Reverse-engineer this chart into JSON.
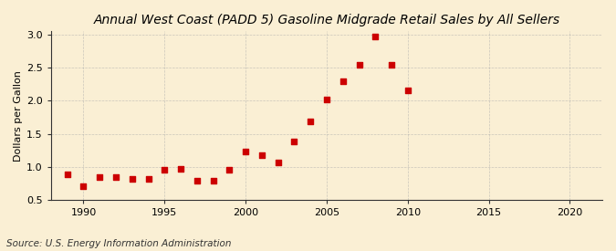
{
  "title": "Annual West Coast (PADD 5) Gasoline Midgrade Retail Sales by All Sellers",
  "ylabel": "Dollars per Gallon",
  "source": "Source: U.S. Energy Information Administration",
  "background_color": "#faefd4",
  "marker_color": "#cc0000",
  "years": [
    1989,
    1990,
    1991,
    1992,
    1993,
    1994,
    1995,
    1996,
    1997,
    1998,
    1999,
    2000,
    2001,
    2002,
    2003,
    2004,
    2005,
    2006,
    2007,
    2008,
    2009,
    2010
  ],
  "values": [
    0.88,
    0.7,
    0.85,
    0.84,
    0.82,
    0.82,
    0.95,
    0.97,
    0.79,
    0.79,
    0.96,
    1.23,
    1.18,
    1.06,
    1.39,
    1.69,
    2.02,
    2.3,
    2.55,
    2.97,
    2.55,
    2.16
  ],
  "xlim": [
    1988,
    2022
  ],
  "ylim": [
    0.5,
    3.05
  ],
  "xticks": [
    1990,
    1995,
    2000,
    2005,
    2010,
    2015,
    2020
  ],
  "yticks": [
    0.5,
    1.0,
    1.5,
    2.0,
    2.5,
    3.0
  ],
  "grid_color": "#aaaaaa",
  "title_fontsize": 10,
  "label_fontsize": 8,
  "source_fontsize": 7.5,
  "marker_size": 4
}
